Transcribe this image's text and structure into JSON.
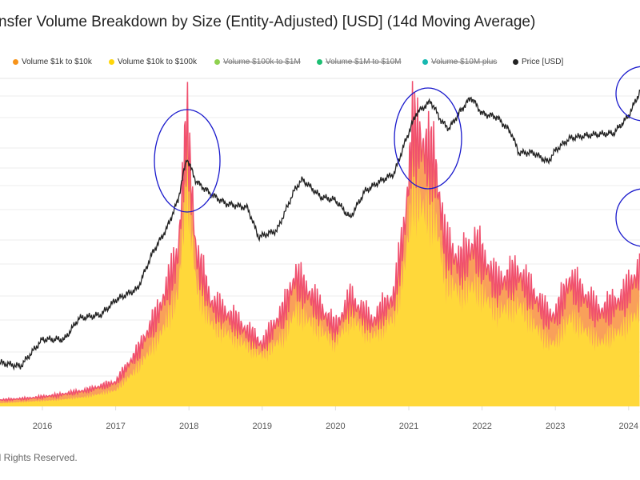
{
  "title": "nsfer Volume Breakdown by Size (Entity-Adjusted) [USD] (14d Moving Average)",
  "footer": "ll Rights Reserved.",
  "legend": [
    {
      "label": "Volume $1k to $10k",
      "color": "#f7931a",
      "enabled": true
    },
    {
      "label": "Volume $10k to $100k",
      "color": "#ffd60a",
      "enabled": true
    },
    {
      "label": "Volume $100k to $1M",
      "color": "#8fd14f",
      "enabled": false
    },
    {
      "label": "Volume $1M to $10M",
      "color": "#1dbf73",
      "enabled": false
    },
    {
      "label": "Volume $10M plus",
      "color": "#17b8b0",
      "enabled": false
    },
    {
      "label": "Price [USD]",
      "color": "#222222",
      "enabled": true
    }
  ],
  "chart_data": {
    "type": "area",
    "title": "nsfer Volume Breakdown by Size (Entity-Adjusted) [USD] (14d Moving Average)",
    "x_ticks": [
      "2016",
      "2017",
      "2018",
      "2019",
      "2020",
      "2021",
      "2022",
      "2023",
      "2024"
    ],
    "xlim": [
      2015.42,
      2024.15
    ],
    "grid": true,
    "legend_position": "top",
    "volume_scale": "linear, unlabeled (relative index)",
    "series": [
      {
        "name": "Volume $10k to $100k",
        "type": "stacked-area",
        "color": "#ffd83a",
        "x": [
          2015.42,
          2015.8,
          2016.2,
          2016.6,
          2017.0,
          2017.3,
          2017.6,
          2017.85,
          2017.97,
          2018.1,
          2018.3,
          2018.6,
          2019.0,
          2019.3,
          2019.45,
          2019.7,
          2020.0,
          2020.2,
          2020.5,
          2020.8,
          2020.95,
          2021.05,
          2021.2,
          2021.35,
          2021.5,
          2021.7,
          2021.9,
          2022.2,
          2022.5,
          2022.9,
          2023.0,
          2023.2,
          2023.6,
          2023.9,
          2024.15
        ],
        "values": [
          1,
          1.5,
          2,
          3,
          5,
          12,
          22,
          35,
          70,
          38,
          26,
          22,
          16,
          22,
          30,
          26,
          20,
          28,
          22,
          28,
          45,
          66,
          62,
          60,
          40,
          36,
          38,
          30,
          32,
          20,
          20,
          28,
          20,
          24,
          30
        ]
      },
      {
        "name": "Volume $1k to $10k",
        "type": "stacked-area",
        "color": "#f9a05a",
        "x": [
          2015.42,
          2015.8,
          2016.2,
          2016.6,
          2017.0,
          2017.3,
          2017.6,
          2017.85,
          2017.97,
          2018.1,
          2018.3,
          2018.6,
          2019.0,
          2019.3,
          2019.45,
          2019.7,
          2020.0,
          2020.2,
          2020.5,
          2020.8,
          2020.95,
          2021.05,
          2021.2,
          2021.35,
          2021.5,
          2021.7,
          2021.9,
          2022.2,
          2022.5,
          2022.9,
          2023.0,
          2023.2,
          2023.6,
          2023.9,
          2024.15
        ],
        "values": [
          1,
          1,
          1.5,
          2,
          2.5,
          5,
          8,
          12,
          18,
          9,
          6,
          5,
          3,
          8,
          10,
          7,
          4,
          5,
          4,
          6,
          12,
          20,
          18,
          16,
          10,
          8,
          12,
          8,
          9,
          8,
          8,
          11,
          9,
          9,
          12
        ]
      },
      {
        "name": "Price [USD]",
        "type": "line",
        "color": "#222222",
        "scale": "log",
        "ylim": [
          105,
          83000
        ],
        "x": [
          2015.42,
          2015.7,
          2016.0,
          2016.3,
          2016.5,
          2016.8,
          2017.0,
          2017.3,
          2017.5,
          2017.7,
          2017.85,
          2017.97,
          2018.1,
          2018.3,
          2018.5,
          2018.8,
          2018.95,
          2019.2,
          2019.45,
          2019.55,
          2019.8,
          2020.0,
          2020.2,
          2020.4,
          2020.6,
          2020.8,
          2020.95,
          2021.1,
          2021.3,
          2021.45,
          2021.55,
          2021.7,
          2021.85,
          2022.0,
          2022.2,
          2022.4,
          2022.5,
          2022.7,
          2022.9,
          2023.0,
          2023.2,
          2023.5,
          2023.8,
          2024.0,
          2024.15
        ],
        "values": [
          260,
          240,
          420,
          420,
          650,
          700,
          950,
          1200,
          2500,
          4200,
          7500,
          18000,
          11000,
          8500,
          7000,
          6400,
          3500,
          4000,
          9500,
          11500,
          8000,
          7500,
          5200,
          9000,
          11000,
          13000,
          25000,
          45000,
          58000,
          38000,
          33000,
          47000,
          63000,
          45000,
          42000,
          30000,
          20000,
          20000,
          16500,
          21000,
          27000,
          29000,
          30000,
          43000,
          70000
        ]
      }
    ],
    "annotations": [
      "ellipse around 2018 peak",
      "ellipse around 2021 peak",
      "ellipse around 2024 price",
      "ellipse around 2024 volume"
    ]
  }
}
